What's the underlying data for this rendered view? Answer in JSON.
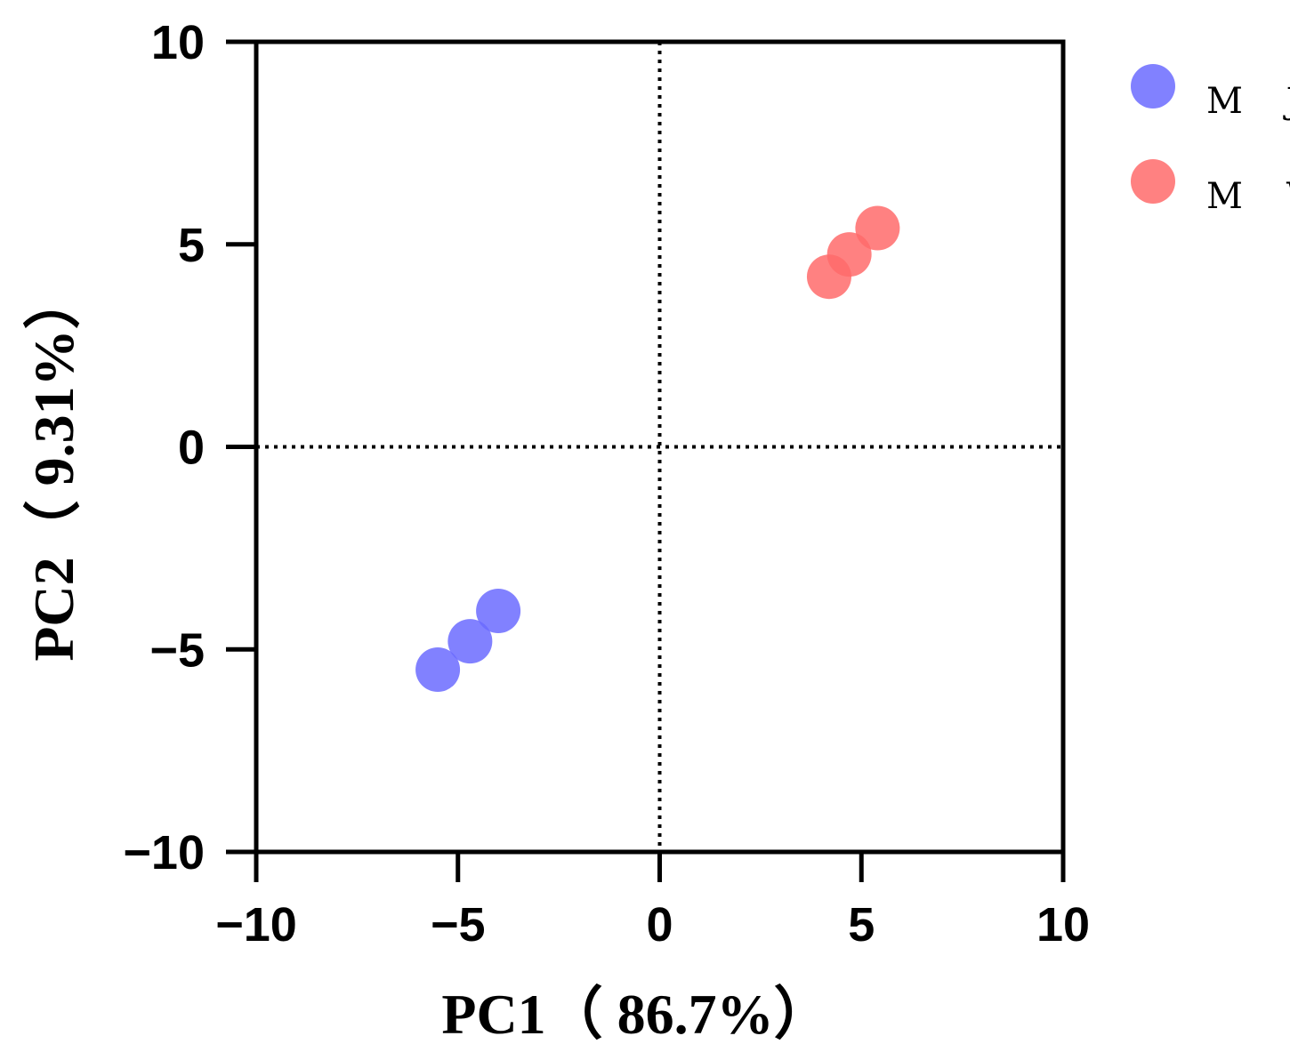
{
  "chart_data": {
    "type": "scatter",
    "title": "",
    "xlabel": "PC1（ 86.7%）",
    "ylabel": "PC2（ 9.31%）",
    "xlim": [
      -10,
      10
    ],
    "ylim": [
      -10,
      10
    ],
    "xticks": [
      -10,
      -5,
      0,
      5,
      10
    ],
    "yticks": [
      -10,
      -5,
      0,
      5,
      10
    ],
    "xtick_labels": [
      "−10",
      "−5",
      "0",
      "5",
      "10"
    ],
    "ytick_labels": [
      "−10",
      "−5",
      "0",
      "5",
      "10"
    ],
    "reference_lines": {
      "x": 0,
      "y": 0,
      "style": "dotted"
    },
    "grid": false,
    "legend_position": "right-top",
    "series": [
      {
        "name": "M J",
        "color": "#6b6bff",
        "points": [
          [
            -5.5,
            -5.5
          ],
          [
            -4.7,
            -4.8
          ],
          [
            -4.0,
            -4.05
          ]
        ]
      },
      {
        "name": "M W",
        "color": "#ff6b6b",
        "points": [
          [
            4.2,
            4.2
          ],
          [
            4.7,
            4.75
          ],
          [
            5.4,
            5.4
          ]
        ]
      }
    ]
  }
}
